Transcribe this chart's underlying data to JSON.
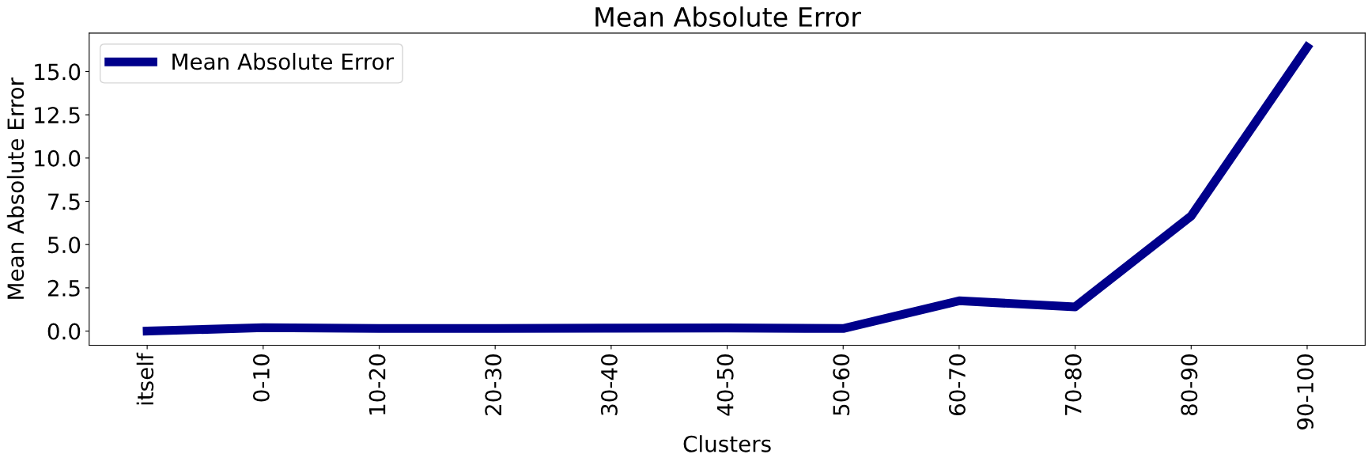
{
  "chart_data": {
    "type": "line",
    "title": "Mean Absolute Error",
    "xlabel": "Clusters",
    "ylabel": "Mean Absolute Error",
    "categories": [
      "itself",
      "0-10",
      "10-20",
      "20-30",
      "30-40",
      "40-50",
      "50-60",
      "60-70",
      "70-80",
      "80-90",
      "90-100"
    ],
    "series": [
      {
        "name": "Mean Absolute Error",
        "color": "#00008b",
        "values": [
          0.0,
          0.2,
          0.15,
          0.15,
          0.17,
          0.18,
          0.15,
          1.75,
          1.4,
          6.65,
          16.4
        ]
      }
    ],
    "ylim": [
      -0.82,
      17.22
    ],
    "yticks": [
      {
        "value": 0,
        "label": "0.0"
      },
      {
        "value": 2.5,
        "label": "2.5"
      },
      {
        "value": 5,
        "label": "5.0"
      },
      {
        "value": 7.5,
        "label": "7.5"
      },
      {
        "value": 10,
        "label": "10.0"
      },
      {
        "value": 12.5,
        "label": "12.5"
      },
      {
        "value": 15,
        "label": "15.0"
      }
    ],
    "grid": false,
    "legend": "top left",
    "line_style": "solid",
    "marker": "none"
  }
}
